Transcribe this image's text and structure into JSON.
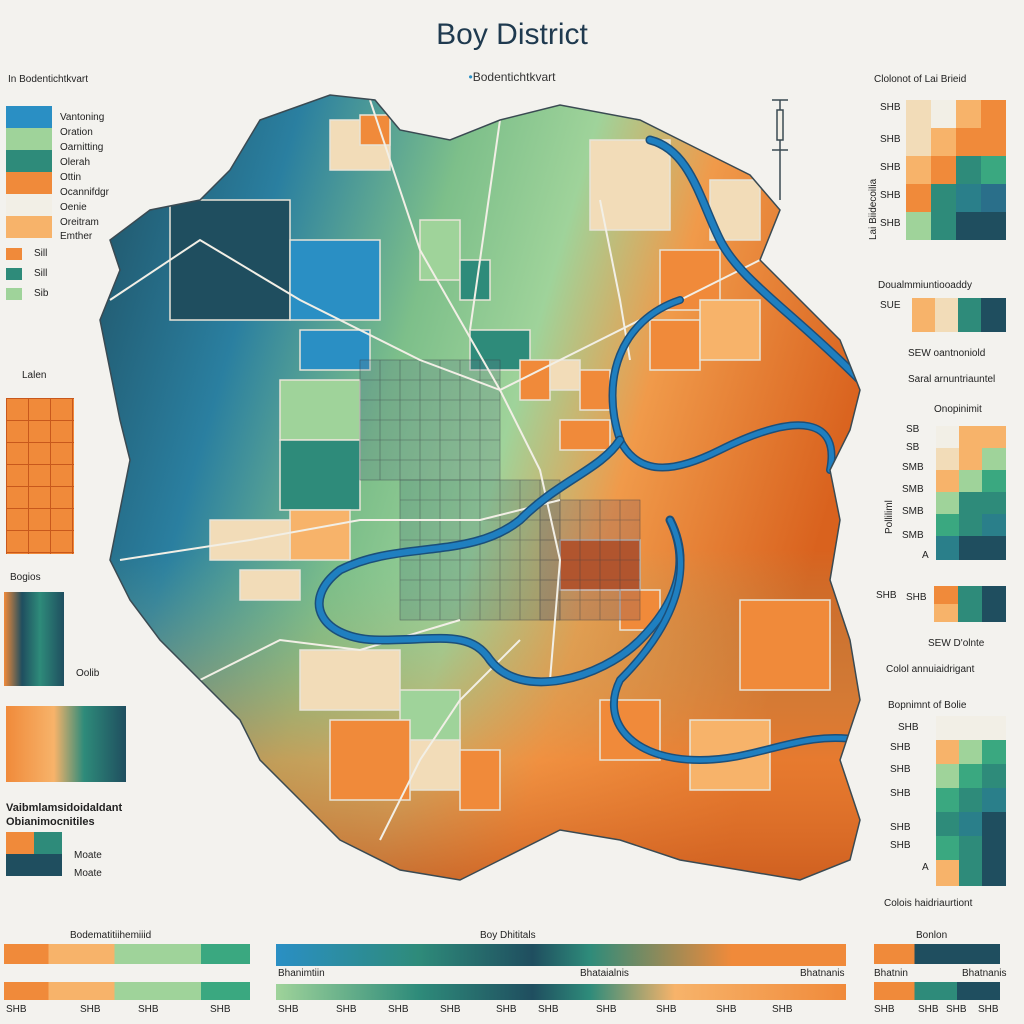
{
  "title": "Boy District",
  "subtitle": "Bodentichtkvart",
  "colors": {
    "dark_teal": "#1f4e5f",
    "teal": "#2e8b7a",
    "blue": "#2a8fc4",
    "light_green": "#9fd39a",
    "orange": "#f08a3a",
    "light_orange": "#f7b36a",
    "cream": "#f2dcb8",
    "river": "#1f7fc0"
  },
  "left_panel": {
    "heading": "In Bodentichtkvart",
    "legend_items": [
      "Vantoning",
      "Oration",
      "Oarnitting",
      "Olerah",
      "Ottin",
      "Ocannifdgr",
      "Oenie",
      "Oreitram",
      "Emther"
    ],
    "small_legend": [
      "Sill",
      "Sill",
      "Sib"
    ],
    "grid_label": "Lalen",
    "bar_label": "Bogios",
    "bar_value": "Oolib",
    "block_label_1": "Vaibmlamsidoidaldant",
    "block_label_2": "Obianimocnitiles",
    "block_items": [
      "Moate",
      "Moate"
    ]
  },
  "right_panel": {
    "heading_1": "Clolonot of Lai Brieid",
    "rows_1": [
      "SHB",
      "SHB",
      "SHB",
      "SHB",
      "SHB"
    ],
    "vertical_1": "Lai Biidecoilia",
    "heading_2": "Doualmmiuntiooaddy",
    "row_2": "SUE",
    "notes_2": [
      "SEW oantnoniold",
      "Saral arnuntriauntel"
    ],
    "heading_3": "Onopinimit",
    "rows_3": [
      "SB",
      "SB",
      "SMB",
      "SMB",
      "SMB",
      "SMB",
      "A"
    ],
    "vertical_3": "Polliliml",
    "row_4": "SHB",
    "row_4b": "SHB",
    "note_4": "SEW D'olnte",
    "heading_5": "Colol annuiaidrigant",
    "heading_6": "Bopnimnt of Bolie",
    "rows_6": [
      "SHB",
      "SHB",
      "SHB",
      "SHB",
      "SHB",
      "SHB",
      "A"
    ],
    "footer_6": "Colois haidriaurtiont"
  },
  "bottom": {
    "left_label": "Bodematitiihemiiid",
    "left_ticks": [
      "SHB",
      "SHB",
      "SHB",
      "SHB"
    ],
    "mid_label": "Boy Dhititals",
    "mid_ticks_top": [
      "Bhanimtiin",
      "Bhataialnis",
      "Bhatnanis"
    ],
    "mid_ticks": [
      "SHB",
      "SHB",
      "SHB",
      "SHB",
      "SHB",
      "SHB",
      "SHB",
      "SHB",
      "SHB",
      "SHB"
    ],
    "right_label": "Bonlon",
    "right_ticks_top": [
      "Bhatnin",
      "Bhatnanis"
    ],
    "right_ticks": [
      "SHB",
      "SHB",
      "SHB",
      "SHB"
    ]
  }
}
